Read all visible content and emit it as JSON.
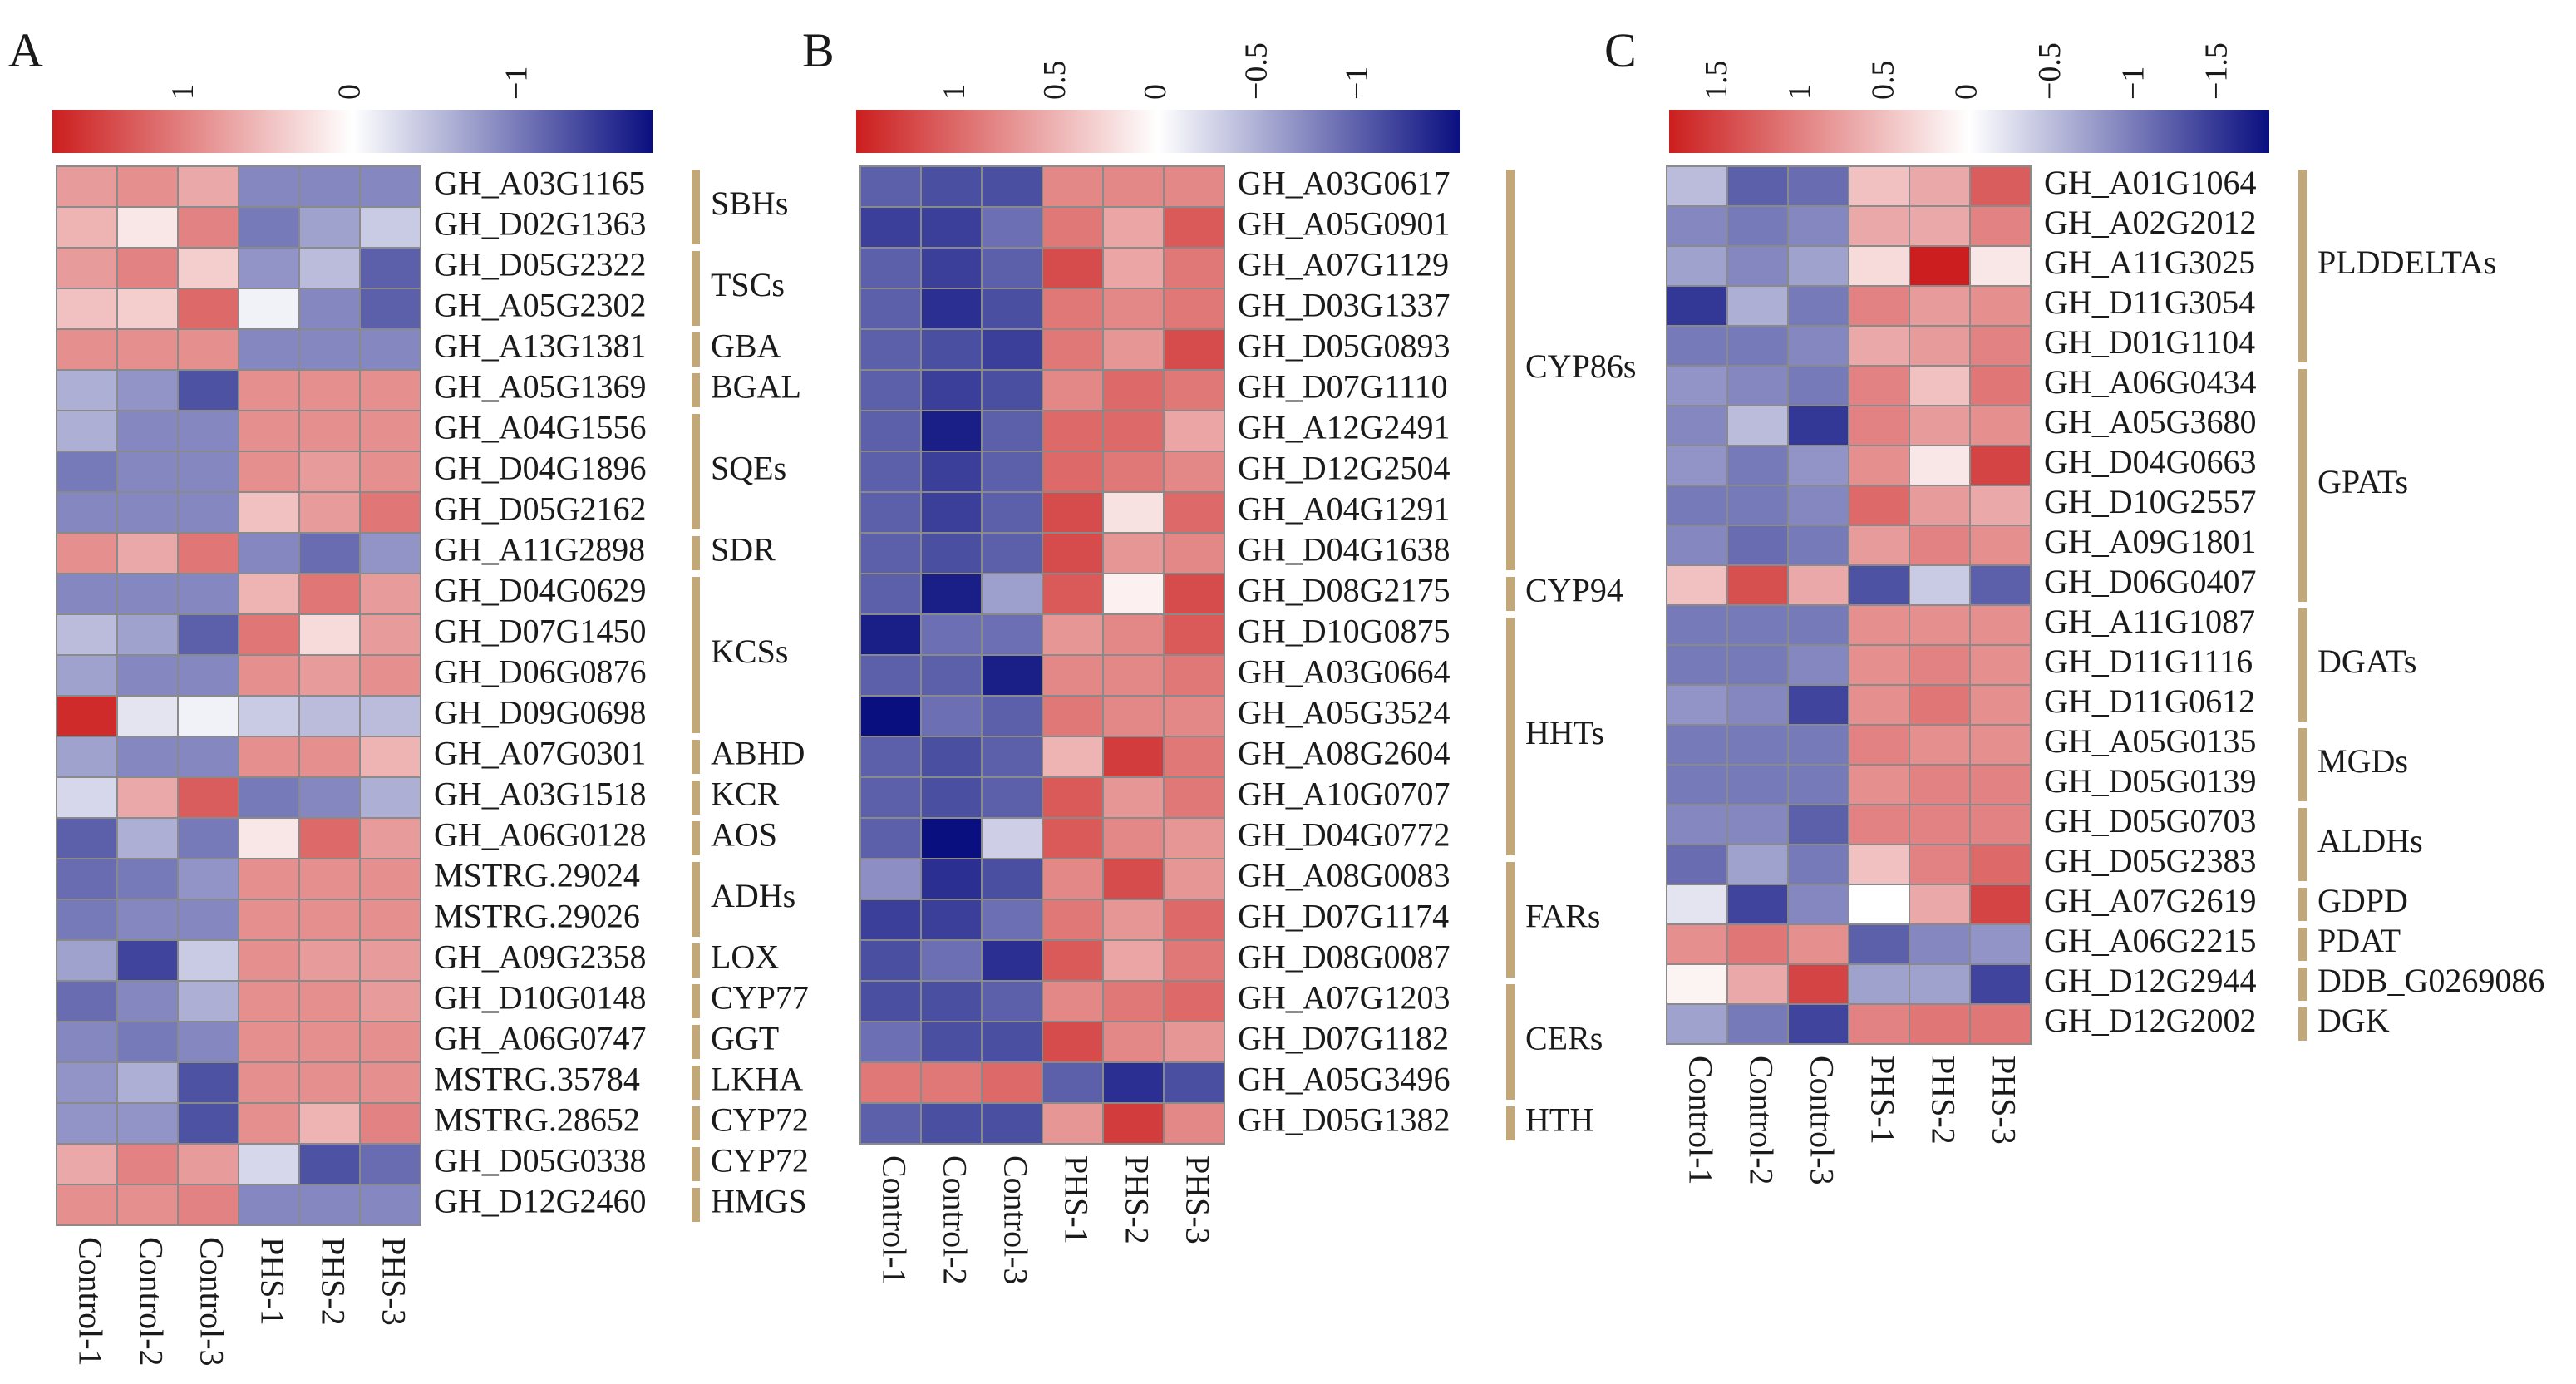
{
  "colors": {
    "low": "#0a0f80",
    "mid": "#ffffff",
    "high": "#cc1e1e",
    "bracket": "#c2a878",
    "cellBorder": "#8a8a8a"
  },
  "chart_data": [
    {
      "type": "heatmap",
      "panel": "A",
      "columns": [
        "Control-1",
        "Control-2",
        "Control-3",
        "PHS-1",
        "PHS-2",
        "PHS-3"
      ],
      "scale": {
        "min": -1.8,
        "max": 1.8,
        "ticks": [
          {
            "value": 1,
            "label": "1"
          },
          {
            "value": 0,
            "label": "0"
          },
          {
            "value": -1,
            "label": "−1"
          }
        ]
      },
      "rows": [
        {
          "gene": "GH_A03G1165",
          "values": [
            0.8,
            0.9,
            0.7,
            -0.9,
            -0.9,
            -0.9
          ]
        },
        {
          "gene": "GH_D02G1363",
          "values": [
            0.6,
            0.2,
            1.0,
            -1.0,
            -0.7,
            -0.4
          ]
        },
        {
          "gene": "GH_D05G2322",
          "values": [
            0.8,
            1.0,
            0.4,
            -0.8,
            -0.5,
            -1.2
          ]
        },
        {
          "gene": "GH_A05G2302",
          "values": [
            0.5,
            0.4,
            1.2,
            -0.1,
            -0.9,
            -1.2
          ]
        },
        {
          "gene": "GH_A13G1381",
          "values": [
            0.9,
            0.9,
            0.9,
            -0.9,
            -0.9,
            -0.9
          ]
        },
        {
          "gene": "GH_A05G1369",
          "values": [
            -0.6,
            -0.8,
            -1.3,
            0.9,
            0.9,
            0.9
          ]
        },
        {
          "gene": "GH_A04G1556",
          "values": [
            -0.6,
            -0.9,
            -0.9,
            0.9,
            0.9,
            0.9
          ]
        },
        {
          "gene": "GH_D04G1896",
          "values": [
            -1.0,
            -0.9,
            -0.9,
            0.9,
            0.8,
            0.9
          ]
        },
        {
          "gene": "GH_D05G2162",
          "values": [
            -0.9,
            -0.9,
            -0.9,
            0.5,
            0.8,
            1.1
          ]
        },
        {
          "gene": "GH_A11G2898",
          "values": [
            0.9,
            0.7,
            1.1,
            -0.9,
            -1.1,
            -0.8
          ]
        },
        {
          "gene": "GH_D04G0629",
          "values": [
            -0.9,
            -0.9,
            -0.9,
            0.6,
            1.1,
            0.8
          ]
        },
        {
          "gene": "GH_D07G1450",
          "values": [
            -0.5,
            -0.7,
            -1.2,
            1.1,
            0.3,
            0.8
          ]
        },
        {
          "gene": "GH_D06G0876",
          "values": [
            -0.7,
            -0.9,
            -0.9,
            0.9,
            0.8,
            0.9
          ]
        },
        {
          "gene": "GH_D09G0698",
          "values": [
            1.7,
            -0.2,
            -0.1,
            -0.4,
            -0.5,
            -0.5
          ]
        },
        {
          "gene": "GH_A07G0301",
          "values": [
            -0.7,
            -0.9,
            -0.9,
            0.9,
            0.9,
            0.6
          ]
        },
        {
          "gene": "GH_A03G1518",
          "values": [
            -0.3,
            0.7,
            1.3,
            -1.0,
            -0.9,
            -0.6
          ]
        },
        {
          "gene": "GH_A06G0128",
          "values": [
            -1.2,
            -0.6,
            -1.0,
            0.2,
            1.2,
            0.8
          ]
        },
        {
          "gene": "MSTRG.29024",
          "values": [
            -1.1,
            -1.0,
            -0.8,
            0.9,
            0.9,
            0.9
          ]
        },
        {
          "gene": "MSTRG.29026",
          "values": [
            -1.0,
            -0.9,
            -0.9,
            0.9,
            0.9,
            0.9
          ]
        },
        {
          "gene": "GH_A09G2358",
          "values": [
            -0.7,
            -1.4,
            -0.4,
            0.9,
            0.8,
            0.8
          ]
        },
        {
          "gene": "GH_D10G0148",
          "values": [
            -1.1,
            -0.9,
            -0.6,
            0.9,
            0.9,
            0.8
          ]
        },
        {
          "gene": "GH_A06G0747",
          "values": [
            -0.9,
            -1.0,
            -0.9,
            0.9,
            0.9,
            0.9
          ]
        },
        {
          "gene": "MSTRG.35784",
          "values": [
            -0.8,
            -0.6,
            -1.3,
            0.9,
            0.9,
            0.9
          ]
        },
        {
          "gene": "MSTRG.28652",
          "values": [
            -0.8,
            -0.8,
            -1.3,
            0.9,
            0.6,
            1.0
          ]
        },
        {
          "gene": "GH_D05G0338",
          "values": [
            0.7,
            1.0,
            0.8,
            -0.3,
            -1.3,
            -1.1
          ]
        },
        {
          "gene": "GH_D12G2460",
          "values": [
            0.9,
            0.9,
            1.0,
            -0.9,
            -0.9,
            -0.9
          ]
        }
      ],
      "groups": [
        {
          "label": "SBHs",
          "start": 0,
          "end": 1
        },
        {
          "label": "TSCs",
          "start": 2,
          "end": 3
        },
        {
          "label": "GBA",
          "start": 4,
          "end": 4
        },
        {
          "label": "BGAL",
          "start": 5,
          "end": 5
        },
        {
          "label": "SQEs",
          "start": 6,
          "end": 8
        },
        {
          "label": "SDR",
          "start": 9,
          "end": 9
        },
        {
          "label": "KCSs",
          "start": 10,
          "end": 13
        },
        {
          "label": "ABHD",
          "start": 14,
          "end": 14
        },
        {
          "label": "KCR",
          "start": 15,
          "end": 15
        },
        {
          "label": "AOS",
          "start": 16,
          "end": 16
        },
        {
          "label": "ADHs",
          "start": 17,
          "end": 18
        },
        {
          "label": "LOX",
          "start": 19,
          "end": 19
        },
        {
          "label": "CYP77",
          "start": 20,
          "end": 20
        },
        {
          "label": "GGT",
          "start": 21,
          "end": 21
        },
        {
          "label": "LKHA",
          "start": 22,
          "end": 22
        },
        {
          "label": "CYP72",
          "start": 23,
          "end": 23
        },
        {
          "label": "CYP72",
          "start": 24,
          "end": 24
        },
        {
          "label": "HMGS",
          "start": 25,
          "end": 25
        }
      ]
    },
    {
      "type": "heatmap",
      "panel": "B",
      "columns": [
        "Control-1",
        "Control-2",
        "Control-3",
        "PHS-1",
        "PHS-2",
        "PHS-3"
      ],
      "scale": {
        "min": -1.5,
        "max": 1.5,
        "ticks": [
          {
            "value": 1,
            "label": "1"
          },
          {
            "value": 0.5,
            "label": "0.5"
          },
          {
            "value": 0,
            "label": "0"
          },
          {
            "value": -0.5,
            "label": "−0.5"
          },
          {
            "value": -1,
            "label": "−1"
          }
        ]
      },
      "rows": [
        {
          "gene": "GH_A03G0617",
          "values": [
            -1.0,
            -1.1,
            -1.1,
            0.8,
            0.8,
            0.8
          ]
        },
        {
          "gene": "GH_A05G0901",
          "values": [
            -1.2,
            -1.2,
            -0.9,
            0.9,
            0.6,
            1.1
          ]
        },
        {
          "gene": "GH_A07G1129",
          "values": [
            -1.0,
            -1.2,
            -1.0,
            1.2,
            0.6,
            0.9
          ]
        },
        {
          "gene": "GH_D03G1337",
          "values": [
            -1.0,
            -1.3,
            -1.1,
            0.9,
            0.8,
            0.9
          ]
        },
        {
          "gene": "GH_D05G0893",
          "values": [
            -1.0,
            -1.1,
            -1.2,
            0.9,
            0.7,
            1.2
          ]
        },
        {
          "gene": "GH_D07G1110",
          "values": [
            -1.0,
            -1.2,
            -1.1,
            0.8,
            1.0,
            0.9
          ]
        },
        {
          "gene": "GH_A12G2491",
          "values": [
            -1.0,
            -1.4,
            -1.0,
            1.0,
            1.0,
            0.6
          ]
        },
        {
          "gene": "GH_D12G2504",
          "values": [
            -1.0,
            -1.2,
            -1.0,
            1.0,
            0.9,
            0.8
          ]
        },
        {
          "gene": "GH_A04G1291",
          "values": [
            -1.0,
            -1.2,
            -1.0,
            1.2,
            0.2,
            1.0
          ]
        },
        {
          "gene": "GH_D04G1638",
          "values": [
            -1.0,
            -1.1,
            -1.0,
            1.2,
            0.7,
            0.8
          ]
        },
        {
          "gene": "GH_D08G2175",
          "values": [
            -1.0,
            -1.4,
            -0.6,
            1.1,
            0.1,
            1.2
          ]
        },
        {
          "gene": "GH_D10G0875",
          "values": [
            -1.4,
            -0.9,
            -0.9,
            0.7,
            0.8,
            1.1
          ]
        },
        {
          "gene": "GH_A03G0664",
          "values": [
            -1.0,
            -1.0,
            -1.4,
            0.8,
            0.8,
            0.9
          ]
        },
        {
          "gene": "GH_A05G3524",
          "values": [
            -1.6,
            -0.9,
            -1.0,
            0.9,
            0.8,
            0.8
          ]
        },
        {
          "gene": "GH_A08G2604",
          "values": [
            -1.0,
            -1.1,
            -1.0,
            0.5,
            1.3,
            0.9
          ]
        },
        {
          "gene": "GH_A10G0707",
          "values": [
            -1.0,
            -1.1,
            -1.0,
            1.1,
            0.7,
            0.9
          ]
        },
        {
          "gene": "GH_D04G0772",
          "values": [
            -1.0,
            -1.6,
            -0.3,
            1.1,
            0.8,
            0.7
          ]
        },
        {
          "gene": "GH_A08G0083",
          "values": [
            -0.7,
            -1.3,
            -1.1,
            0.8,
            1.2,
            0.7
          ]
        },
        {
          "gene": "GH_D07G1174",
          "values": [
            -1.2,
            -1.2,
            -0.9,
            0.9,
            0.7,
            1.0
          ]
        },
        {
          "gene": "GH_D08G0087",
          "values": [
            -1.1,
            -0.9,
            -1.3,
            1.1,
            0.6,
            0.9
          ]
        },
        {
          "gene": "GH_A07G1203",
          "values": [
            -1.1,
            -1.1,
            -1.0,
            0.8,
            0.9,
            1.0
          ]
        },
        {
          "gene": "GH_D07G1182",
          "values": [
            -0.9,
            -1.1,
            -1.1,
            1.2,
            0.8,
            0.7
          ]
        },
        {
          "gene": "GH_A05G3496",
          "values": [
            0.9,
            0.9,
            1.0,
            -1.0,
            -1.3,
            -1.1
          ]
        },
        {
          "gene": "GH_D05G1382",
          "values": [
            -1.0,
            -1.1,
            -1.1,
            0.7,
            1.3,
            0.8
          ]
        }
      ],
      "groups": [
        {
          "label": "CYP86s",
          "start": 0,
          "end": 9
        },
        {
          "label": "CYP94",
          "start": 10,
          "end": 10
        },
        {
          "label": "HHTs",
          "start": 11,
          "end": 16
        },
        {
          "label": "FARs",
          "start": 17,
          "end": 19
        },
        {
          "label": "CERs",
          "start": 20,
          "end": 22
        },
        {
          "label": "HTH",
          "start": 23,
          "end": 23
        }
      ]
    },
    {
      "type": "heatmap",
      "panel": "C",
      "columns": [
        "Control-1",
        "Control-2",
        "Control-3",
        "PHS-1",
        "PHS-2",
        "PHS-3"
      ],
      "scale": {
        "min": -1.8,
        "max": 1.8,
        "ticks": [
          {
            "value": 1.5,
            "label": "1.5"
          },
          {
            "value": 1,
            "label": "1"
          },
          {
            "value": 0.5,
            "label": "0.5"
          },
          {
            "value": 0,
            "label": "0"
          },
          {
            "value": -0.5,
            "label": "−0.5"
          },
          {
            "value": -1,
            "label": "−1"
          },
          {
            "value": -1.5,
            "label": "−1.5"
          }
        ]
      },
      "rows": [
        {
          "gene": "GH_A01G1064",
          "values": [
            -0.5,
            -1.2,
            -1.1,
            0.5,
            0.7,
            1.3
          ]
        },
        {
          "gene": "GH_A02G2012",
          "values": [
            -0.9,
            -1.0,
            -0.9,
            0.7,
            0.7,
            1.0
          ]
        },
        {
          "gene": "GH_A11G3025",
          "values": [
            -0.7,
            -0.9,
            -0.7,
            0.3,
            1.8,
            0.2
          ]
        },
        {
          "gene": "GH_D11G3054",
          "values": [
            -1.5,
            -0.6,
            -1.0,
            1.0,
            0.8,
            0.9
          ]
        },
        {
          "gene": "GH_D01G1104",
          "values": [
            -1.0,
            -1.0,
            -0.9,
            0.7,
            0.8,
            1.0
          ]
        },
        {
          "gene": "GH_A06G0434",
          "values": [
            -0.8,
            -0.9,
            -1.0,
            1.0,
            0.5,
            1.1
          ]
        },
        {
          "gene": "GH_A05G3680",
          "values": [
            -0.9,
            -0.5,
            -1.5,
            1.0,
            0.8,
            0.9
          ]
        },
        {
          "gene": "GH_D04G0663",
          "values": [
            -0.8,
            -1.0,
            -0.8,
            0.9,
            0.2,
            1.5
          ]
        },
        {
          "gene": "GH_D10G2557",
          "values": [
            -1.0,
            -1.0,
            -0.9,
            1.2,
            0.8,
            0.7
          ]
        },
        {
          "gene": "GH_A09G1801",
          "values": [
            -0.9,
            -1.1,
            -1.0,
            0.8,
            1.0,
            0.9
          ]
        },
        {
          "gene": "GH_D06G0407",
          "values": [
            0.5,
            1.4,
            0.7,
            -1.3,
            -0.4,
            -1.2
          ]
        },
        {
          "gene": "GH_A11G1087",
          "values": [
            -1.0,
            -1.0,
            -1.0,
            0.9,
            0.9,
            0.9
          ]
        },
        {
          "gene": "GH_D11G1116",
          "values": [
            -1.0,
            -1.0,
            -0.9,
            0.9,
            1.0,
            0.9
          ]
        },
        {
          "gene": "GH_D11G0612",
          "values": [
            -0.8,
            -0.9,
            -1.4,
            0.9,
            1.1,
            0.9
          ]
        },
        {
          "gene": "GH_A05G0135",
          "values": [
            -1.0,
            -1.0,
            -1.0,
            1.0,
            0.9,
            0.9
          ]
        },
        {
          "gene": "GH_D05G0139",
          "values": [
            -1.0,
            -1.0,
            -1.0,
            0.9,
            1.0,
            1.0
          ]
        },
        {
          "gene": "GH_D05G0703",
          "values": [
            -0.9,
            -0.9,
            -1.2,
            1.0,
            1.0,
            1.0
          ]
        },
        {
          "gene": "GH_D05G2383",
          "values": [
            -1.1,
            -0.7,
            -1.0,
            0.5,
            1.0,
            1.2
          ]
        },
        {
          "gene": "GH_A07G2619",
          "values": [
            -0.2,
            -1.4,
            -0.9,
            0.0,
            0.7,
            1.5
          ]
        },
        {
          "gene": "GH_A06G2215",
          "values": [
            0.9,
            1.1,
            0.9,
            -1.2,
            -0.9,
            -0.8
          ]
        },
        {
          "gene": "GH_D12G2944",
          "values": [
            0.1,
            0.7,
            1.5,
            -0.7,
            -0.7,
            -1.4
          ]
        },
        {
          "gene": "GH_D12G2002",
          "values": [
            -0.7,
            -1.0,
            -1.4,
            1.0,
            1.1,
            1.1
          ]
        }
      ],
      "groups": [
        {
          "label": "PLDDELTAs",
          "start": 0,
          "end": 4
        },
        {
          "label": "GPATs",
          "start": 5,
          "end": 10
        },
        {
          "label": "DGATs",
          "start": 11,
          "end": 13
        },
        {
          "label": "MGDs",
          "start": 14,
          "end": 15
        },
        {
          "label": "ALDHs",
          "start": 16,
          "end": 17
        },
        {
          "label": "GDPD",
          "start": 18,
          "end": 18
        },
        {
          "label": "PDAT",
          "start": 19,
          "end": 19
        },
        {
          "label": "DDB_G0269086",
          "start": 20,
          "end": 20
        },
        {
          "label": "DGK",
          "start": 21,
          "end": 21
        }
      ]
    }
  ]
}
